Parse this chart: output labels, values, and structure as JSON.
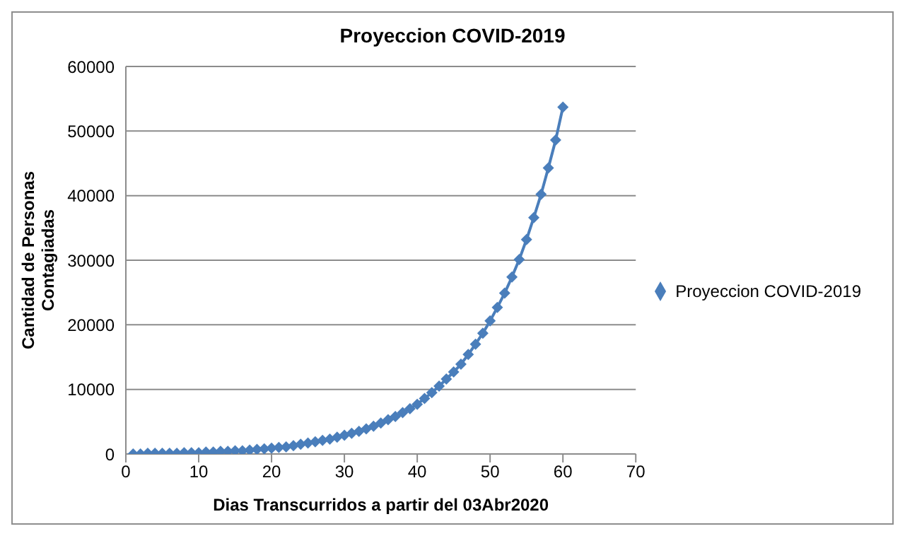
{
  "chart_data": {
    "type": "line",
    "title": "Proyeccion COVID-2019",
    "xlabel": "Dias Transcurridos a partir del 03Abr2020",
    "ylabel": "Cantidad de Personas Contagiadas",
    "x": [
      1,
      2,
      3,
      4,
      5,
      6,
      7,
      8,
      9,
      10,
      11,
      12,
      13,
      14,
      15,
      16,
      17,
      18,
      19,
      20,
      21,
      22,
      23,
      24,
      25,
      26,
      27,
      28,
      29,
      30,
      31,
      32,
      33,
      34,
      35,
      36,
      37,
      38,
      39,
      40,
      41,
      42,
      43,
      44,
      45,
      46,
      47,
      48,
      49,
      50,
      51,
      52,
      53,
      54,
      55,
      56,
      57,
      58,
      59,
      60
    ],
    "series": [
      {
        "name": "Proyeccion COVID-2019",
        "color": "#4a7ebb",
        "values": [
          0,
          0,
          100,
          100,
          100,
          100,
          100,
          200,
          200,
          200,
          300,
          300,
          400,
          400,
          500,
          500,
          600,
          700,
          800,
          900,
          1000,
          1100,
          1300,
          1500,
          1700,
          1900,
          2100,
          2300,
          2600,
          2900,
          3200,
          3500,
          3900,
          4300,
          4800,
          5300,
          5800,
          6400,
          7000,
          7700,
          8600,
          9500,
          10500,
          11600,
          12700,
          13900,
          15400,
          17000,
          18700,
          20600,
          22700,
          24900,
          27400,
          30100,
          33200,
          36600,
          40200,
          44300,
          48600,
          53700
        ]
      }
    ],
    "xlim": [
      0,
      70
    ],
    "xticks": [
      0,
      10,
      20,
      30,
      40,
      50,
      60,
      70
    ],
    "ylim": [
      0,
      60000
    ],
    "yticks": [
      0,
      10000,
      20000,
      30000,
      40000,
      50000,
      60000
    ],
    "grid": "y",
    "legend": "right",
    "marker": "diamond",
    "line_style": "solid"
  }
}
